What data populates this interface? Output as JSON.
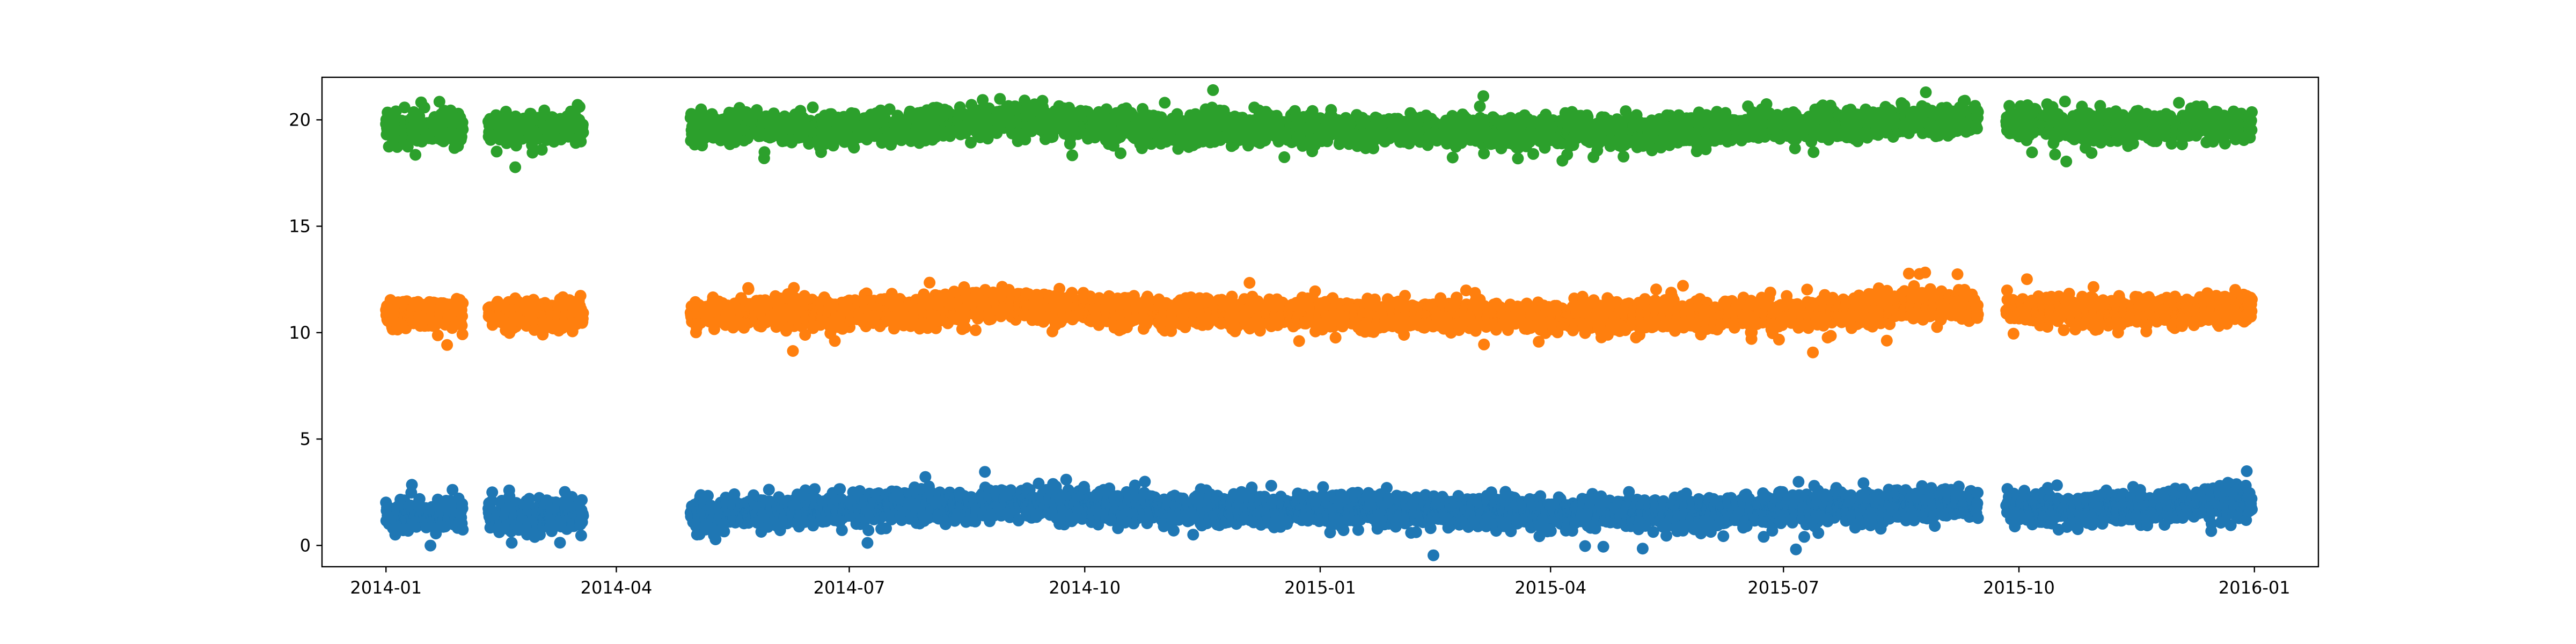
{
  "chart_data": {
    "type": "scatter",
    "title": "",
    "xlabel": "",
    "ylabel": "",
    "x_axis_type": "date",
    "xlim": [
      "2013-12-07",
      "2016-01-26"
    ],
    "ylim": [
      -1.0,
      22.0
    ],
    "x_ticks": [
      "2014-01-01",
      "2014-04-01",
      "2014-07-01",
      "2014-10-01",
      "2015-01-01",
      "2015-04-01",
      "2015-07-01",
      "2015-10-01",
      "2016-01-01"
    ],
    "x_tick_labels": [
      "2014-01",
      "2014-04",
      "2014-07",
      "2014-10",
      "2015-01",
      "2015-04",
      "2015-07",
      "2015-10",
      "2016-01"
    ],
    "y_ticks": [
      0,
      5,
      10,
      15,
      20
    ],
    "y_tick_labels": [
      "0",
      "5",
      "10",
      "15",
      "20"
    ],
    "grid": false,
    "legend": "none",
    "date_segments": [
      [
        "2014-01-01",
        "2014-01-31"
      ],
      [
        "2014-02-10",
        "2014-03-19"
      ],
      [
        "2014-04-30",
        "2015-09-15"
      ],
      [
        "2015-09-26",
        "2015-12-31"
      ]
    ],
    "series": [
      {
        "color": "#1f77b4",
        "marker_color": "#1f77b4",
        "center": 1.6,
        "spread": 0.7,
        "monthly_center": [
          [
            "2014-01-01",
            1.4
          ],
          [
            "2014-03-01",
            1.4
          ],
          [
            "2014-05-01",
            1.5
          ],
          [
            "2014-07-01",
            1.7
          ],
          [
            "2014-09-01",
            2.0
          ],
          [
            "2014-11-01",
            1.7
          ],
          [
            "2015-01-01",
            1.7
          ],
          [
            "2015-03-01",
            1.6
          ],
          [
            "2015-05-01",
            1.5
          ],
          [
            "2015-07-01",
            1.7
          ],
          [
            "2015-09-01",
            2.0
          ],
          [
            "2015-11-01",
            1.7
          ],
          [
            "2015-12-31",
            2.0
          ]
        ]
      },
      {
        "color": "#ff7f0e",
        "marker_color": "#ff7f0e",
        "center": 10.9,
        "spread": 0.65,
        "monthly_center": [
          [
            "2014-01-01",
            10.8
          ],
          [
            "2014-03-01",
            10.9
          ],
          [
            "2014-05-01",
            10.9
          ],
          [
            "2014-07-01",
            10.9
          ],
          [
            "2014-09-01",
            11.3
          ],
          [
            "2014-11-01",
            10.9
          ],
          [
            "2015-01-01",
            10.9
          ],
          [
            "2015-03-01",
            10.8
          ],
          [
            "2015-05-01",
            10.7
          ],
          [
            "2015-07-01",
            10.9
          ],
          [
            "2015-09-01",
            11.3
          ],
          [
            "2015-11-01",
            10.9
          ],
          [
            "2015-12-31",
            11.2
          ]
        ]
      },
      {
        "color": "#2ca02c",
        "marker_color": "#2ca02c",
        "center": 19.6,
        "spread": 0.65,
        "monthly_center": [
          [
            "2014-01-01",
            19.5
          ],
          [
            "2014-03-01",
            19.6
          ],
          [
            "2014-05-01",
            19.6
          ],
          [
            "2014-07-01",
            19.6
          ],
          [
            "2014-09-01",
            20.0
          ],
          [
            "2014-11-01",
            19.6
          ],
          [
            "2015-01-01",
            19.6
          ],
          [
            "2015-03-01",
            19.5
          ],
          [
            "2015-05-01",
            19.4
          ],
          [
            "2015-07-01",
            19.7
          ],
          [
            "2015-09-01",
            20.0
          ],
          [
            "2015-11-01",
            19.6
          ],
          [
            "2015-12-31",
            19.8
          ]
        ]
      }
    ]
  }
}
